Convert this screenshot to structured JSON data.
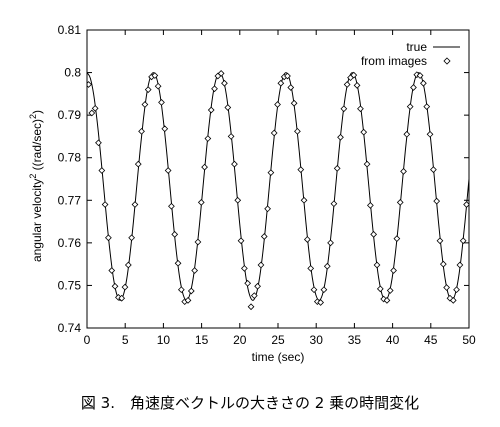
{
  "chart_data": {
    "type": "line",
    "xlabel": "time (sec)",
    "ylabel": {
      "text": "angular velocity",
      "sup1": "2",
      "unit": " ((rad/sec)",
      "sup2": "2",
      "close": ")"
    },
    "xlim": [
      0,
      50
    ],
    "ylim": [
      0.74,
      0.81
    ],
    "x_ticks": [
      "0",
      "5",
      "10",
      "15",
      "20",
      "25",
      "30",
      "35",
      "40",
      "45",
      "50"
    ],
    "y_ticks": [
      "0.74",
      "0.75",
      "0.76",
      "0.77",
      "0.78",
      "0.79",
      "0.8",
      "0.81"
    ],
    "grid": false,
    "legend": "top-right",
    "series": [
      {
        "name": "true",
        "type": "line",
        "color": "#000000",
        "x": [
          0,
          0.43,
          0.87,
          1.3,
          1.74,
          2.17,
          2.6,
          3.04,
          3.47,
          3.91,
          4.34,
          4.77,
          5.21,
          5.64,
          6.08,
          6.51,
          6.94,
          7.38,
          7.81,
          8.25,
          8.68,
          9.11,
          9.55,
          9.98,
          10.42,
          10.85,
          11.28,
          11.72,
          12.15,
          12.59,
          13.02,
          13.45,
          13.89,
          14.32,
          14.76,
          15.19,
          15.62,
          16.06,
          16.49,
          16.93,
          17.36,
          17.79,
          18.23,
          18.66,
          19.1,
          19.53,
          19.96,
          20.4,
          20.83,
          21.27,
          21.7,
          22.13,
          22.57,
          23.0,
          23.44,
          23.87,
          24.3,
          24.74,
          25.17,
          25.61,
          26.04,
          26.47,
          26.91,
          27.34,
          27.78,
          28.21,
          28.64,
          29.08,
          29.51,
          29.95,
          30.38,
          30.81,
          31.25,
          31.68,
          32.12,
          32.55,
          32.98,
          33.42,
          33.85,
          34.29,
          34.72,
          35.15,
          35.59,
          36.02,
          36.46,
          36.89,
          37.32,
          37.76,
          38.19,
          38.63,
          39.06,
          39.49,
          39.93,
          40.36,
          40.8,
          41.23,
          41.66,
          42.1,
          42.53,
          42.97,
          43.4,
          43.83,
          44.27,
          44.7,
          45.14,
          45.57,
          46.0,
          46.44,
          46.87,
          47.31,
          47.74,
          48.17,
          48.61,
          49.04,
          49.48,
          49.91,
          50
        ],
        "y": [
          0.8,
          0.7987,
          0.7949,
          0.789,
          0.7815,
          0.7733,
          0.765,
          0.7575,
          0.7516,
          0.7478,
          0.7465,
          0.7478,
          0.7516,
          0.7575,
          0.765,
          0.7733,
          0.7815,
          0.789,
          0.7949,
          0.7987,
          0.8,
          0.7987,
          0.7949,
          0.789,
          0.7815,
          0.7733,
          0.765,
          0.7575,
          0.7516,
          0.7478,
          0.7465,
          0.7478,
          0.7516,
          0.7575,
          0.765,
          0.7733,
          0.7815,
          0.789,
          0.7949,
          0.7987,
          0.8,
          0.7987,
          0.7949,
          0.789,
          0.7815,
          0.7733,
          0.765,
          0.7575,
          0.7516,
          0.7478,
          0.7465,
          0.7478,
          0.7516,
          0.7575,
          0.765,
          0.7733,
          0.7815,
          0.789,
          0.7949,
          0.7987,
          0.8,
          0.7987,
          0.7949,
          0.789,
          0.7815,
          0.7733,
          0.765,
          0.7575,
          0.7516,
          0.7478,
          0.7465,
          0.7478,
          0.7516,
          0.7575,
          0.765,
          0.7733,
          0.7815,
          0.789,
          0.7949,
          0.7987,
          0.8,
          0.7987,
          0.7949,
          0.789,
          0.7815,
          0.7733,
          0.765,
          0.7575,
          0.7516,
          0.7478,
          0.7465,
          0.7478,
          0.7516,
          0.7575,
          0.765,
          0.7733,
          0.7815,
          0.789,
          0.7949,
          0.7987,
          0.8,
          0.7987,
          0.7949,
          0.789,
          0.7815,
          0.7733,
          0.765,
          0.7575,
          0.7516,
          0.7478,
          0.7465,
          0.7478,
          0.7516,
          0.7575,
          0.765,
          0.7733,
          0.775
        ]
      },
      {
        "name": "from images",
        "type": "scatter",
        "color": "#000000",
        "x": [
          0.2,
          0.63,
          1.07,
          1.5,
          1.94,
          2.37,
          2.8,
          3.24,
          3.67,
          4.11,
          4.54,
          4.97,
          5.41,
          5.84,
          6.28,
          6.71,
          7.14,
          7.58,
          8.01,
          8.45,
          8.88,
          9.31,
          9.75,
          10.18,
          10.62,
          11.05,
          11.48,
          11.92,
          12.35,
          12.79,
          13.22,
          13.65,
          14.09,
          14.52,
          14.96,
          15.39,
          15.82,
          16.26,
          16.69,
          17.13,
          17.56,
          17.99,
          18.43,
          18.86,
          19.3,
          19.73,
          20.16,
          20.6,
          21.03,
          21.47,
          21.9,
          22.33,
          22.77,
          23.2,
          23.64,
          24.07,
          24.5,
          24.94,
          25.37,
          25.81,
          26.24,
          26.67,
          27.11,
          27.54,
          27.98,
          28.41,
          28.84,
          29.28,
          29.71,
          30.15,
          30.58,
          31.01,
          31.45,
          31.88,
          32.32,
          32.75,
          33.18,
          33.62,
          34.05,
          34.49,
          34.92,
          35.35,
          35.79,
          36.22,
          36.66,
          37.09,
          37.52,
          37.96,
          38.39,
          38.83,
          39.26,
          39.69,
          40.13,
          40.56,
          41.0,
          41.43,
          41.86,
          42.3,
          42.73,
          43.17,
          43.6,
          44.03,
          44.47,
          44.9,
          45.34,
          45.77,
          46.2,
          46.64,
          47.07,
          47.51,
          47.94,
          48.37,
          48.81,
          49.24,
          49.68
        ],
        "y": [
          0.7972,
          0.7905,
          0.7916,
          0.7835,
          0.777,
          0.769,
          0.7612,
          0.7535,
          0.7498,
          0.7472,
          0.747,
          0.7496,
          0.7548,
          0.7612,
          0.769,
          0.7785,
          0.7862,
          0.7925,
          0.796,
          0.799,
          0.7993,
          0.7968,
          0.793,
          0.7868,
          0.777,
          0.7686,
          0.762,
          0.7552,
          0.749,
          0.7462,
          0.7465,
          0.7487,
          0.7535,
          0.7602,
          0.7695,
          0.7778,
          0.7845,
          0.7912,
          0.7962,
          0.7992,
          0.7998,
          0.7975,
          0.7918,
          0.785,
          0.7785,
          0.77,
          0.7605,
          0.754,
          0.7505,
          0.745,
          0.7476,
          0.7498,
          0.7548,
          0.7615,
          0.768,
          0.7765,
          0.7858,
          0.7925,
          0.7975,
          0.799,
          0.7992,
          0.7965,
          0.7928,
          0.7862,
          0.7772,
          0.77,
          0.7608,
          0.754,
          0.749,
          0.7462,
          0.746,
          0.749,
          0.7545,
          0.76,
          0.7692,
          0.7775,
          0.7848,
          0.7915,
          0.7972,
          0.7988,
          0.7994,
          0.797,
          0.7915,
          0.786,
          0.7785,
          0.7688,
          0.762,
          0.7548,
          0.7492,
          0.7468,
          0.7465,
          0.7488,
          0.7535,
          0.761,
          0.7695,
          0.7768,
          0.7855,
          0.792,
          0.7965,
          0.7995,
          0.7993,
          0.7975,
          0.792,
          0.7855,
          0.7772,
          0.7698,
          0.7605,
          0.755,
          0.7495,
          0.747,
          0.7465,
          0.749,
          0.7548,
          0.7605,
          0.769
        ]
      }
    ]
  },
  "caption": "図 3.　角速度ベクトルの大きさの 2 乗の時間変化"
}
